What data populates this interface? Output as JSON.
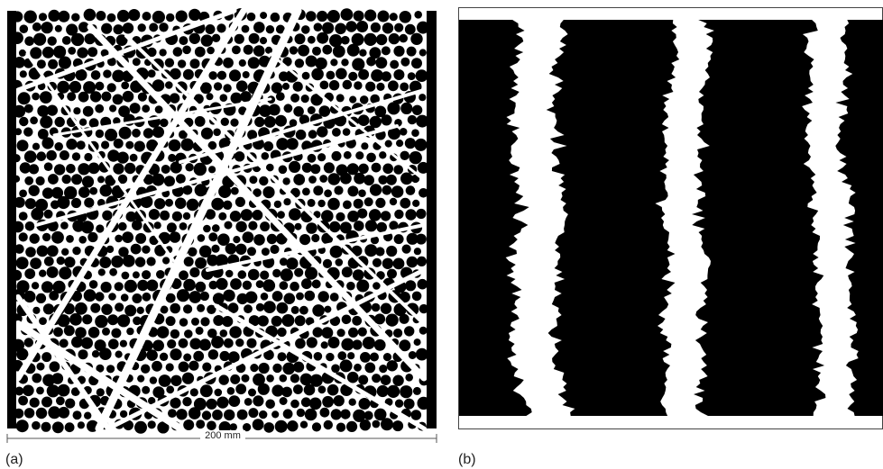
{
  "panels": [
    {
      "label": "(a)",
      "scale_label": "200 mm"
    },
    {
      "label": "(b)"
    }
  ]
}
